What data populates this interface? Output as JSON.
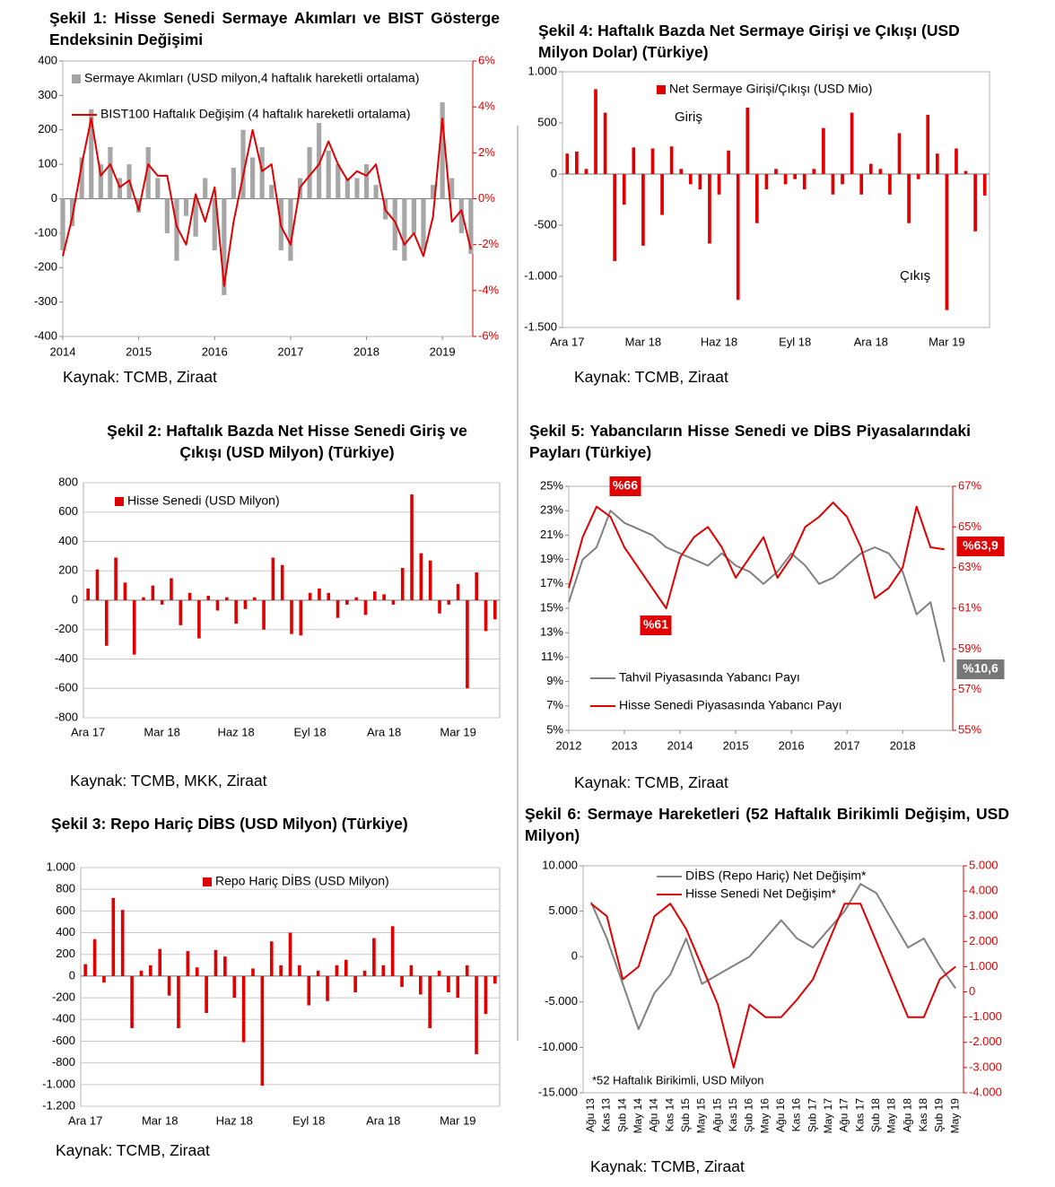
{
  "chart_data": [
    {
      "type": "combo",
      "title": "Şekil 1: Hisse Senedi Sermaye Akımları ve BIST Gösterge Endeksinin Değişimi",
      "source": "Kaynak: TCMB, Ziraat",
      "x": [
        2014,
        2014.125,
        2014.25,
        2014.375,
        2014.5,
        2014.625,
        2014.75,
        2014.875,
        2015,
        2015.125,
        2015.25,
        2015.375,
        2015.5,
        2015.625,
        2015.75,
        2015.875,
        2016,
        2016.125,
        2016.25,
        2016.375,
        2016.5,
        2016.625,
        2016.75,
        2016.875,
        2017,
        2017.125,
        2017.25,
        2017.375,
        2017.5,
        2017.625,
        2017.75,
        2017.875,
        2018,
        2018.125,
        2018.25,
        2018.375,
        2018.5,
        2018.625,
        2018.75,
        2018.875,
        2019,
        2019.125,
        2019.25,
        2019.375
      ],
      "xlim": [
        2014,
        2019.4
      ],
      "xticks": [
        2014,
        2015,
        2016,
        2017,
        2018,
        2019
      ],
      "ylim": [
        -400,
        400
      ],
      "yticks": [
        400,
        300,
        200,
        100,
        0,
        -100,
        -200,
        -300,
        -400
      ],
      "y2lim": [
        -6,
        6
      ],
      "y2ticks": [
        {
          "value": 6,
          "label": "6%"
        },
        {
          "value": 4,
          "label": "4%"
        },
        {
          "value": 2,
          "label": "2%"
        },
        {
          "value": 0,
          "label": "0%"
        },
        {
          "value": -2,
          "label": "-2%"
        },
        {
          "value": -4,
          "label": "-4%"
        },
        {
          "value": -6,
          "label": "-6%"
        }
      ],
      "series": [
        {
          "name": "Sermaye Akımları (USD milyon,4 haftalık hareketli ortalama)",
          "type": "bar",
          "color": "#a6a6a6",
          "values": [
            -150,
            -80,
            120,
            260,
            100,
            150,
            60,
            100,
            -40,
            150,
            60,
            -100,
            -180,
            -50,
            -110,
            60,
            -150,
            -280,
            90,
            200,
            120,
            150,
            40,
            -150,
            -180,
            60,
            150,
            220,
            140,
            100,
            60,
            60,
            100,
            40,
            -60,
            -150,
            -180,
            -100,
            -150,
            40,
            280,
            60,
            -100,
            -160
          ]
        },
        {
          "name": "BIST100 Haftalık Değişim (4 haftalık hareketli ortalama)",
          "type": "line",
          "axis": "y2",
          "color": "#e00000",
          "values": [
            -2.5,
            -0.8,
            1.5,
            3.5,
            1.0,
            1.5,
            0.5,
            0.8,
            -0.5,
            1.5,
            1.0,
            1.0,
            -1.2,
            -2.0,
            0.2,
            -1.0,
            0.5,
            -3.8,
            -1.0,
            1.0,
            3.0,
            1.2,
            1.5,
            -1.2,
            -2.0,
            0.5,
            1.0,
            1.5,
            2.5,
            1.5,
            0.8,
            1.2,
            1.0,
            1.5,
            -0.5,
            -1.0,
            -2.0,
            -1.5,
            -2.5,
            -0.8,
            3.5,
            -1.0,
            -0.5,
            -2.2
          ]
        }
      ]
    },
    {
      "type": "bar",
      "title": "Şekil 2: Haftalık Bazda Net Hisse Senedi Giriş ve Çıkışı (USD Milyon) (Türkiye)",
      "source": "Kaynak: TCMB, MKK, Ziraat",
      "grid": true,
      "categories": [
        "Ara 17",
        null,
        null,
        null,
        null,
        null,
        null,
        null,
        "Mar 18",
        null,
        null,
        null,
        null,
        null,
        null,
        null,
        "Haz 18",
        null,
        null,
        null,
        null,
        null,
        null,
        null,
        "Eyl 18",
        null,
        null,
        null,
        null,
        null,
        null,
        null,
        "Ara 18",
        null,
        null,
        null,
        null,
        null,
        null,
        null,
        "Mar 19",
        null,
        null,
        null,
        null
      ],
      "ylim": [
        -800,
        800
      ],
      "yticks": [
        800,
        600,
        400,
        200,
        0,
        -200,
        -400,
        -600,
        -800
      ],
      "series": [
        {
          "name": "Hisse Senedi (USD Milyon)",
          "color": "#e00000",
          "values": [
            80,
            210,
            -310,
            290,
            120,
            -370,
            20,
            100,
            -30,
            150,
            -170,
            50,
            -260,
            30,
            -70,
            20,
            -160,
            -60,
            20,
            -200,
            290,
            240,
            -230,
            -240,
            50,
            80,
            50,
            -120,
            -30,
            20,
            -100,
            60,
            40,
            -30,
            220,
            720,
            320,
            270,
            -90,
            -30,
            110,
            -600,
            190,
            -210,
            -130
          ]
        }
      ]
    },
    {
      "type": "bar",
      "title": "Şekil 3: Repo Hariç DİBS (USD Milyon) (Türkiye)",
      "source": "Kaynak: TCMB, Ziraat",
      "grid": true,
      "categories": [
        "Ara 17",
        null,
        null,
        null,
        null,
        null,
        null,
        null,
        "Mar 18",
        null,
        null,
        null,
        null,
        null,
        null,
        null,
        "Haz 18",
        null,
        null,
        null,
        null,
        null,
        null,
        null,
        "Eyl 18",
        null,
        null,
        null,
        null,
        null,
        null,
        null,
        "Ara 18",
        null,
        null,
        null,
        null,
        null,
        null,
        null,
        "Mar 19",
        null,
        null,
        null,
        null
      ],
      "ylim": [
        -1200,
        1000
      ],
      "yticks": [
        {
          "value": 1000,
          "label": "1.000"
        },
        800,
        600,
        400,
        200,
        0,
        -200,
        -400,
        -600,
        -800,
        {
          "value": -1000,
          "label": "-1.000"
        },
        {
          "value": -1200,
          "label": "-1.200"
        }
      ],
      "series": [
        {
          "name": "Repo Hariç DİBS (USD Milyon)",
          "color": "#e00000",
          "values": [
            110,
            340,
            -60,
            720,
            610,
            -480,
            50,
            100,
            250,
            -180,
            -480,
            230,
            80,
            -340,
            240,
            180,
            -200,
            -610,
            70,
            -1010,
            320,
            100,
            400,
            100,
            -270,
            50,
            -230,
            100,
            150,
            -150,
            50,
            350,
            100,
            460,
            -100,
            100,
            -170,
            -480,
            50,
            -150,
            -200,
            100,
            -720,
            -350,
            -70
          ]
        }
      ]
    },
    {
      "type": "bar",
      "title": "Şekil 4: Haftalık Bazda Net Sermaye Girişi ve Çıkışı (USD Milyon Dolar) (Türkiye)",
      "source": "Kaynak: TCMB, Ziraat",
      "annotations": [
        "Giriş",
        "Çıkış"
      ],
      "categories": [
        "Ara 17",
        null,
        null,
        null,
        null,
        null,
        null,
        null,
        "Mar 18",
        null,
        null,
        null,
        null,
        null,
        null,
        null,
        "Haz 18",
        null,
        null,
        null,
        null,
        null,
        null,
        null,
        "Eyl 18",
        null,
        null,
        null,
        null,
        null,
        null,
        null,
        "Ara 18",
        null,
        null,
        null,
        null,
        null,
        null,
        null,
        "Mar 19",
        null,
        null,
        null,
        null
      ],
      "ylim": [
        -1500,
        1000
      ],
      "yticks": [
        {
          "value": 1000,
          "label": "1.000"
        },
        500,
        0,
        -500,
        {
          "value": -1000,
          "label": "-1.000"
        },
        {
          "value": -1500,
          "label": "-1.500"
        }
      ],
      "series": [
        {
          "name": "Net Sermaye Girişi/Çıkışı (USD Mio)",
          "color": "#e00000",
          "values": [
            200,
            220,
            50,
            830,
            600,
            -850,
            -300,
            260,
            -700,
            250,
            -400,
            270,
            50,
            -100,
            -150,
            -680,
            -200,
            230,
            -1230,
            650,
            -480,
            -150,
            50,
            -100,
            -50,
            -150,
            50,
            450,
            -200,
            -100,
            600,
            -200,
            100,
            50,
            -200,
            400,
            -480,
            -50,
            580,
            200,
            -1330,
            250,
            30,
            -560,
            -210
          ]
        }
      ]
    },
    {
      "type": "line",
      "title": "Şekil 5: Yabancıların Hisse Senedi ve DİBS Piyasalarındaki Payları (Türkiye)",
      "source": "Kaynak: TCMB, Ziraat",
      "annotations": [
        "%66",
        "%61",
        "%63,9",
        "%10,6"
      ],
      "x": [
        2012,
        2012.25,
        2012.5,
        2012.75,
        2013,
        2013.25,
        2013.5,
        2013.75,
        2014,
        2014.25,
        2014.5,
        2014.75,
        2015,
        2015.25,
        2015.5,
        2015.75,
        2016,
        2016.25,
        2016.5,
        2016.75,
        2017,
        2017.25,
        2017.5,
        2017.75,
        2018,
        2018.25,
        2018.5,
        2018.75
      ],
      "xlim": [
        2012,
        2018.9
      ],
      "xticks": [
        2012,
        2013,
        2014,
        2015,
        2016,
        2017,
        2018
      ],
      "ylim": [
        5,
        25
      ],
      "yticks": [
        {
          "value": 25,
          "label": "25%"
        },
        {
          "value": 23,
          "label": "23%"
        },
        {
          "value": 21,
          "label": "21%"
        },
        {
          "value": 19,
          "label": "19%"
        },
        {
          "value": 17,
          "label": "17%"
        },
        {
          "value": 15,
          "label": "15%"
        },
        {
          "value": 13,
          "label": "13%"
        },
        {
          "value": 11,
          "label": "11%"
        },
        {
          "value": 9,
          "label": "9%"
        },
        {
          "value": 7,
          "label": "7%"
        },
        {
          "value": 5,
          "label": "5%"
        }
      ],
      "y2lim": [
        55,
        67
      ],
      "y2ticks": [
        {
          "value": 67,
          "label": "67%"
        },
        {
          "value": 65,
          "label": "65%"
        },
        {
          "value": 63,
          "label": "63%"
        },
        {
          "value": 61,
          "label": "61%"
        },
        {
          "value": 59,
          "label": "59%"
        },
        {
          "value": 57,
          "label": "57%"
        },
        {
          "value": 55,
          "label": "55%"
        }
      ],
      "series": [
        {
          "name": "Tahvil Piyasasında Yabancı Payı",
          "color": "#808080",
          "values": [
            15.5,
            19,
            20,
            23,
            22,
            21.5,
            21,
            20,
            19.5,
            19,
            18.5,
            19.5,
            18.5,
            18,
            17,
            18,
            19.5,
            18.5,
            17,
            17.5,
            18.5,
            19.5,
            20,
            19.5,
            18,
            14.5,
            15.5,
            10.6
          ]
        },
        {
          "name": "Hisse Senedi Piyasasında Yabancı Payı",
          "axis": "y2",
          "color": "#e00000",
          "values": [
            62,
            64.5,
            66,
            65.5,
            64,
            63,
            62,
            61,
            63.5,
            64.5,
            65,
            64,
            62.5,
            63.5,
            64.5,
            62.5,
            63.5,
            65,
            65.5,
            66.2,
            65.5,
            64,
            61.5,
            62,
            63,
            66,
            64,
            63.9
          ]
        }
      ]
    },
    {
      "type": "line",
      "title": "Şekil 6: Sermaye Hareketleri (52 Haftalık Birikimli Değişim, USD Milyon)",
      "source": "Kaynak: TCMB, Ziraat",
      "annotations": [
        "*52 Haftalık  Birikimli, USD Milyon"
      ],
      "categories": [
        "Ağu 13",
        "Kas 13",
        "Şub 14",
        "May 14",
        "Ağu 14",
        "Kas 14",
        "Şub 15",
        "May 15",
        "Ağu 15",
        "Kas 15",
        "Şub 16",
        "May 16",
        "Ağu 16",
        "Kas 16",
        "Şub 17",
        "May 17",
        "Ağu 17",
        "Kas 17",
        "Şub 18",
        "May 18",
        "Ağu 18",
        "Kas 18",
        "Şub 19",
        "May 19"
      ],
      "ylim": [
        -15000,
        10000
      ],
      "yticks": [
        {
          "value": 10000,
          "label": "10.000"
        },
        {
          "value": 5000,
          "label": "5.000"
        },
        0,
        {
          "value": -5000,
          "label": "-5.000"
        },
        {
          "value": -10000,
          "label": "-10.000"
        },
        {
          "value": -15000,
          "label": "-15.000"
        }
      ],
      "y2lim": [
        -4000,
        5000
      ],
      "y2ticks": [
        {
          "value": 5000,
          "label": "5.000"
        },
        {
          "value": 4000,
          "label": "4.000"
        },
        {
          "value": 3000,
          "label": "3.000"
        },
        {
          "value": 2000,
          "label": "2.000"
        },
        {
          "value": 1000,
          "label": "1.000"
        },
        0,
        {
          "value": -1000,
          "label": "-1.000"
        },
        {
          "value": -2000,
          "label": "-2.000"
        },
        {
          "value": -3000,
          "label": "-3.000"
        },
        {
          "value": -4000,
          "label": "-4.000"
        }
      ],
      "series": [
        {
          "name": "DİBS (Repo Hariç) Net Değişim*",
          "color": "#808080",
          "values": [
            6000,
            2000,
            -3000,
            -8000,
            -4000,
            -2000,
            2000,
            -3000,
            -2000,
            -1000,
            0,
            2000,
            4000,
            2000,
            1000,
            3000,
            5000,
            8000,
            7000,
            4000,
            1000,
            2000,
            -1000,
            -3500
          ]
        },
        {
          "name": "Hisse Senedi Net Değişim*",
          "axis": "y2",
          "color": "#e00000",
          "values": [
            3500,
            3000,
            500,
            1000,
            3000,
            3500,
            2500,
            1000,
            -500,
            -3000,
            -500,
            -1000,
            -1000,
            -300,
            500,
            2000,
            3500,
            3500,
            2000,
            500,
            -1000,
            -1000,
            500,
            1000
          ]
        }
      ]
    }
  ]
}
